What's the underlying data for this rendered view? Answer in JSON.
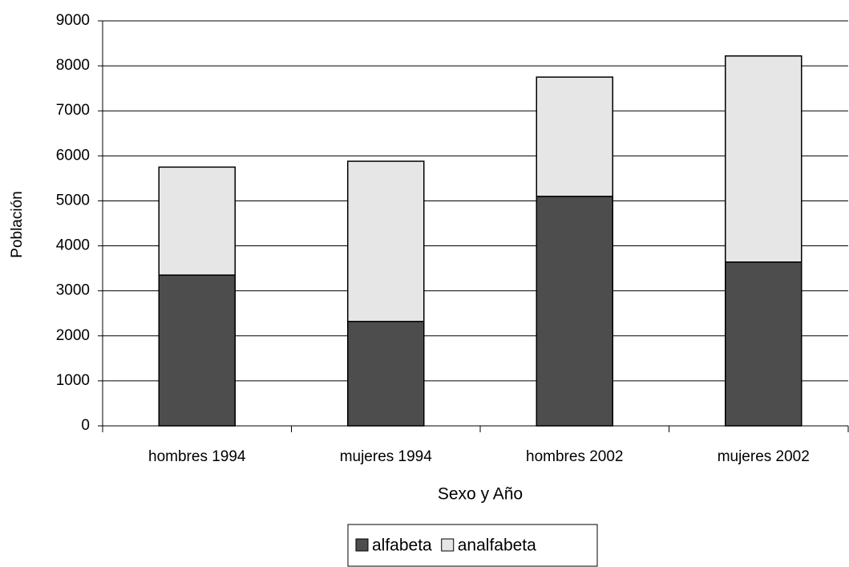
{
  "chart_data": {
    "type": "stacked_bar",
    "xlabel": "Sexo y Año",
    "ylabel": "Población",
    "categories": [
      "hombres 1994",
      "mujeres 1994",
      "hombres 2002",
      "mujeres 2002"
    ],
    "series": [
      {
        "name": "alfabeta",
        "color": "#4d4d4d",
        "values": [
          3350,
          2320,
          5100,
          3640
        ]
      },
      {
        "name": "analfabeta",
        "color": "#e6e6e6",
        "values": [
          2400,
          3560,
          2650,
          4580
        ]
      }
    ],
    "ylim": [
      0,
      9000
    ],
    "yticks": [
      0,
      1000,
      2000,
      3000,
      4000,
      5000,
      6000,
      7000,
      8000,
      9000
    ],
    "grid": true,
    "legend": "bottom"
  }
}
